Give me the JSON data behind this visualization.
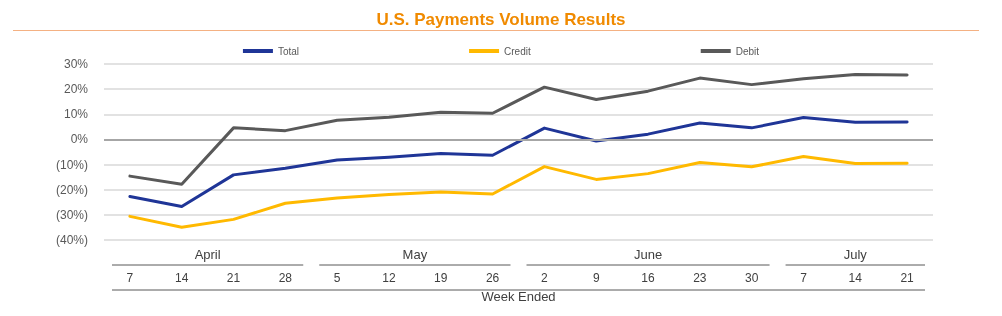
{
  "chart_data": {
    "type": "line",
    "title": "U.S. Payments Volume Results",
    "xlabel": "Week Ended",
    "categories": [
      "7",
      "14",
      "21",
      "28",
      "5",
      "12",
      "19",
      "26",
      "2",
      "9",
      "16",
      "23",
      "30",
      "7",
      "14",
      "21"
    ],
    "series": [
      {
        "name": "Total",
        "color": "#1f3597",
        "values": [
          -22.7,
          -26.7,
          -14.1,
          -11.5,
          -8.2,
          -7.1,
          -5.6,
          -6.3,
          4.5,
          -0.6,
          2.1,
          6.5,
          4.6,
          8.7,
          6.8,
          6.9
        ]
      },
      {
        "name": "Credit",
        "color": "#ffb900",
        "values": [
          -30.6,
          -34.9,
          -31.8,
          -25.4,
          -23.3,
          -21.9,
          -20.9,
          -21.7,
          -10.8,
          -15.9,
          -13.6,
          -9.2,
          -10.9,
          -6.8,
          -9.6,
          -9.5
        ]
      },
      {
        "name": "Debit",
        "color": "#595959",
        "values": [
          -14.6,
          -17.8,
          4.6,
          3.5,
          7.6,
          8.8,
          10.8,
          10.4,
          20.8,
          15.9,
          19.2,
          24.4,
          21.8,
          24.1,
          25.8,
          25.6
        ]
      }
    ],
    "ylim": [
      -40,
      30
    ],
    "yticks": [
      {
        "value": -40,
        "label": "(40%)"
      },
      {
        "value": -30,
        "label": "(30%)"
      },
      {
        "value": -20,
        "label": "(20%)"
      },
      {
        "value": -10,
        "label": "(10%)"
      },
      {
        "value": 0,
        "label": "0%"
      },
      {
        "value": 10,
        "label": "10%"
      },
      {
        "value": 20,
        "label": "20%"
      },
      {
        "value": 30,
        "label": "30%"
      }
    ],
    "ref_lines": [
      {
        "axis": "y",
        "value": 0,
        "color": "#a6a6a6"
      }
    ],
    "annotations": [
      "April",
      "May",
      "June",
      "July"
    ],
    "grid": "y",
    "legend": "top",
    "marker": "none",
    "line_style": "solid"
  }
}
